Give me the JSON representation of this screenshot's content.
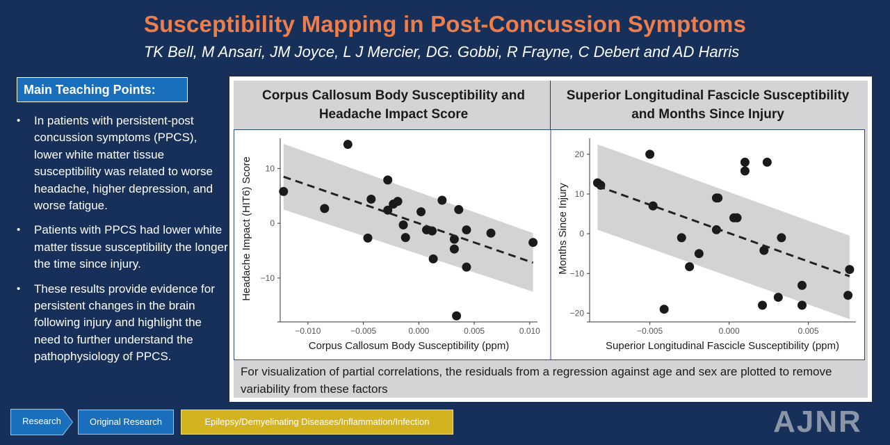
{
  "header": {
    "title": "Susceptibility Mapping in Post-Concussion Symptoms",
    "authors": "TK Bell, M Ansari, JM Joyce, L J Mercier, DG. Gobbi, R Frayne, C Debert and AD Harris"
  },
  "teaching_points": {
    "header": "Main Teaching Points:",
    "bullet": "•",
    "items": [
      "In patients with persistent-post concussion symptoms (PPCS), lower white matter tissue susceptibility was related to worse headache, higher depression, and worse fatigue.",
      "Patients with PPCS had lower white matter tissue susceptibility the longer the time since injury.",
      "These results provide evidence for persistent changes in the brain following injury and highlight the need to further understand the pathophysiology of PPCS."
    ]
  },
  "footnote": "For visualization of partial correlations, the residuals from a regression against age and sex are plotted to remove variability from these factors",
  "tags": {
    "research": "Research",
    "original": "Original Research",
    "category": "Epilepsy/Demyelinating Diseases/Inflammation/Infection"
  },
  "logo": "AJNR",
  "colors": {
    "background": "#163059",
    "title": "#ee7d4c",
    "accent_blue": "#1a6fbd",
    "tag_yellow": "#d4b320",
    "panel_gray": "#d4d4d6",
    "points": "#1a1a1a",
    "ribbon": "#d3d3d3"
  },
  "chart_data": [
    {
      "type": "scatter",
      "title": "Corpus Callosum Body Susceptibility and Headache Impact Score",
      "xlabel": "Corpus Callosum Body Susceptibility (ppm)",
      "ylabel": "Headache Impact (HIT6) Score",
      "xlim": [
        -0.0125,
        0.0107
      ],
      "ylim": [
        -17.5,
        15.5
      ],
      "xticks": [
        -0.01,
        -0.005,
        0.0,
        0.005,
        0.01
      ],
      "xtick_labels": [
        "−0.010",
        "−0.005",
        "0.000",
        "0.005",
        "0.010"
      ],
      "yticks": [
        -10,
        0,
        10
      ],
      "ytick_labels": [
        "−10",
        "0",
        "10"
      ],
      "fit": {
        "x": [
          -0.0122,
          0.0103
        ],
        "y": [
          8.5,
          -7.2
        ]
      },
      "ci_band": {
        "x": [
          -0.0122,
          0.0103
        ],
        "upper": [
          14.5,
          -1.8
        ],
        "lower": [
          2.5,
          -12.5
        ]
      },
      "points": [
        {
          "x": -0.0122,
          "y": 5.8
        },
        {
          "x": -0.0085,
          "y": 2.7
        },
        {
          "x": -0.0064,
          "y": 14.4
        },
        {
          "x": -0.0046,
          "y": -2.7
        },
        {
          "x": -0.0043,
          "y": 4.4
        },
        {
          "x": -0.0028,
          "y": 7.9
        },
        {
          "x": -0.0028,
          "y": 2.4
        },
        {
          "x": -0.0023,
          "y": 3.5
        },
        {
          "x": -0.0019,
          "y": 4.0
        },
        {
          "x": -0.0014,
          "y": -0.3
        },
        {
          "x": -0.0012,
          "y": -2.6
        },
        {
          "x": 0.0002,
          "y": 2.1
        },
        {
          "x": 0.0007,
          "y": -1.2
        },
        {
          "x": 0.0012,
          "y": -1.4
        },
        {
          "x": 0.0013,
          "y": -6.5
        },
        {
          "x": 0.0021,
          "y": 4.2
        },
        {
          "x": 0.0032,
          "y": -2.9
        },
        {
          "x": 0.0032,
          "y": -4.7
        },
        {
          "x": 0.0034,
          "y": -16.9
        },
        {
          "x": 0.0036,
          "y": 2.5
        },
        {
          "x": 0.0043,
          "y": -1.2
        },
        {
          "x": 0.0043,
          "y": -8.0
        },
        {
          "x": 0.0065,
          "y": -1.8
        },
        {
          "x": 0.0103,
          "y": -3.5
        }
      ]
    },
    {
      "type": "scatter",
      "title": "Superior Longitudinal Fascicle Susceptibility and Months Since Injury",
      "xlabel": "Superior Longitudinal Fascicle Susceptibility (ppm)",
      "ylabel": "Months Since Injury",
      "xlim": [
        -0.0088,
        0.008
      ],
      "ylim": [
        -21.5,
        24
      ],
      "xticks": [
        -0.005,
        0.0,
        0.005
      ],
      "xtick_labels": [
        "−0.005",
        "0.000",
        "0.005"
      ],
      "yticks": [
        -20,
        -10,
        0,
        10,
        20
      ],
      "ytick_labels": [
        "−20",
        "−10",
        "0",
        "10",
        "20"
      ],
      "fit": {
        "x": [
          -0.0083,
          0.0076
        ],
        "y": [
          12.0,
          -10.7
        ]
      },
      "ci_band": {
        "x": [
          -0.0083,
          0.0076
        ],
        "upper": [
          22.5,
          -0.5
        ],
        "lower": [
          1.0,
          -21.5
        ]
      },
      "points": [
        {
          "x": -0.0083,
          "y": 12.8
        },
        {
          "x": -0.0081,
          "y": 12.2
        },
        {
          "x": -0.005,
          "y": 20.0
        },
        {
          "x": -0.0048,
          "y": 7.0
        },
        {
          "x": -0.0041,
          "y": -19.0
        },
        {
          "x": -0.003,
          "y": -1.0
        },
        {
          "x": -0.0025,
          "y": -8.3
        },
        {
          "x": -0.0019,
          "y": -5.0
        },
        {
          "x": -0.0008,
          "y": 9.0
        },
        {
          "x": -0.0007,
          "y": 9.0
        },
        {
          "x": -0.0008,
          "y": 1.0
        },
        {
          "x": 0.0003,
          "y": 4.0
        },
        {
          "x": 0.0005,
          "y": 4.0
        },
        {
          "x": 0.001,
          "y": 18.0
        },
        {
          "x": 0.001,
          "y": 15.8
        },
        {
          "x": 0.0021,
          "y": -18.0
        },
        {
          "x": 0.0022,
          "y": -4.2
        },
        {
          "x": 0.0024,
          "y": 18.0
        },
        {
          "x": 0.0031,
          "y": -16.0
        },
        {
          "x": 0.0033,
          "y": -1.0
        },
        {
          "x": 0.0046,
          "y": -13.0
        },
        {
          "x": 0.0046,
          "y": -18.0
        },
        {
          "x": 0.0075,
          "y": -15.5
        },
        {
          "x": 0.0076,
          "y": -9.0
        }
      ]
    }
  ]
}
